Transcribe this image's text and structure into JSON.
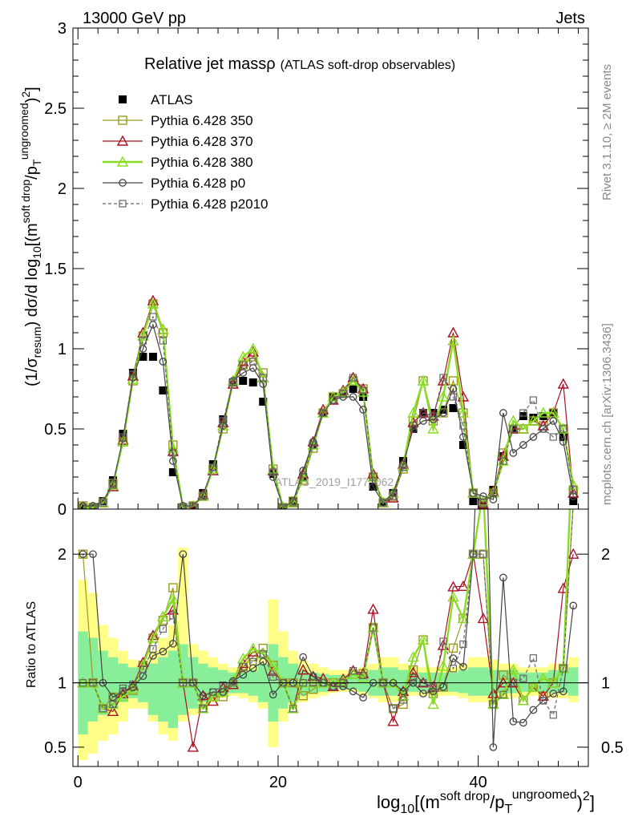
{
  "header": {
    "process": "13000 GeV pp",
    "category": "Jets",
    "side_rivet": "Rivet 3.1.10, ≥ 2M events",
    "side_site": "mcplots.cern.ch [arXiv:1306.3436]"
  },
  "chart_data": [
    {
      "type": "line",
      "title_main": "Relative jet massρ",
      "title_sub": "(ATLAS soft-drop observables)",
      "ylabel": "(1/σresum) dσ/d log10[(m^soft drop/pT^ungroomed)^2]",
      "ylim": [
        0,
        3
      ],
      "xlim": [
        -0.5,
        51
      ],
      "yticks": [
        "0",
        "0.5",
        "1",
        "1.5",
        "2",
        "2.5",
        "3"
      ],
      "watermark": "ATLAS_2019_I1772062",
      "x": [
        0.5,
        1.5,
        2.5,
        3.5,
        4.5,
        5.5,
        6.5,
        7.5,
        8.5,
        9.5,
        10.5,
        11.5,
        12.5,
        13.5,
        14.5,
        15.5,
        16.5,
        17.5,
        18.5,
        19.5,
        20.5,
        21.5,
        22.5,
        23.5,
        24.5,
        25.5,
        26.5,
        27.5,
        28.5,
        29.5,
        30.5,
        31.5,
        32.5,
        33.5,
        34.5,
        35.5,
        36.5,
        37.5,
        38.5,
        39.5,
        40.5,
        41.5,
        42.5,
        43.5,
        44.5,
        45.5,
        46.5,
        47.5,
        48.5,
        49.5
      ],
      "series": [
        {
          "name": "ATLAS",
          "color": "#000000",
          "marker": "filled-square",
          "values": [
            0.01,
            0.01,
            0.05,
            0.18,
            0.47,
            0.85,
            0.95,
            0.95,
            0.74,
            0.23,
            0.01,
            0.02,
            0.1,
            0.28,
            0.56,
            0.79,
            0.8,
            0.79,
            0.67,
            0.22,
            0.01,
            0.05,
            0.2,
            0.4,
            0.6,
            0.7,
            0.72,
            0.75,
            0.7,
            0.14,
            0.04,
            0.1,
            0.3,
            0.5,
            0.6,
            0.6,
            0.62,
            0.63,
            0.4,
            0.05,
            0.02,
            0.12,
            0.33,
            0.5,
            0.58,
            0.57,
            0.58,
            0.6,
            0.45,
            0.05
          ]
        },
        {
          "name": "Pythia 6.428 350",
          "color": "#999922",
          "marker": "open-square",
          "values": [
            0.02,
            0.01,
            0.04,
            0.16,
            0.42,
            0.8,
            1.08,
            1.28,
            1.1,
            0.4,
            0.01,
            0.02,
            0.08,
            0.25,
            0.5,
            0.78,
            0.9,
            0.95,
            0.85,
            0.25,
            0.01,
            0.05,
            0.18,
            0.38,
            0.6,
            0.7,
            0.72,
            0.8,
            0.75,
            0.2,
            0.04,
            0.08,
            0.25,
            0.55,
            0.8,
            0.55,
            0.6,
            0.8,
            0.6,
            0.1,
            0.04,
            0.1,
            0.35,
            0.5,
            0.5,
            0.55,
            0.52,
            0.6,
            0.5,
            0.12
          ]
        },
        {
          "name": "Pythia 6.428 370",
          "color": "#aa1122",
          "marker": "open-triangle",
          "values": [
            0.01,
            0.01,
            0.04,
            0.14,
            0.43,
            0.83,
            1.1,
            1.3,
            1.12,
            0.36,
            0.01,
            0.01,
            0.09,
            0.24,
            0.54,
            0.78,
            0.92,
            0.98,
            0.82,
            0.24,
            0.01,
            0.04,
            0.22,
            0.42,
            0.62,
            0.68,
            0.74,
            0.82,
            0.75,
            0.22,
            0.04,
            0.07,
            0.28,
            0.54,
            0.6,
            0.58,
            0.8,
            1.1,
            0.7,
            0.1,
            0.03,
            0.11,
            0.33,
            0.5,
            0.5,
            0.55,
            0.52,
            0.6,
            0.78,
            0.1
          ]
        },
        {
          "name": "Pythia 6.428 380",
          "color": "#88dd22",
          "marker": "open-triangle",
          "values": [
            0.01,
            0.01,
            0.04,
            0.15,
            0.42,
            0.81,
            1.08,
            1.28,
            1.12,
            0.38,
            0.01,
            0.02,
            0.08,
            0.25,
            0.52,
            0.8,
            0.95,
            1.0,
            0.82,
            0.25,
            0.01,
            0.04,
            0.2,
            0.4,
            0.6,
            0.7,
            0.73,
            0.8,
            0.73,
            0.2,
            0.04,
            0.1,
            0.27,
            0.6,
            0.8,
            0.5,
            0.7,
            1.05,
            0.6,
            0.1,
            0.05,
            0.1,
            0.3,
            0.55,
            0.5,
            0.55,
            0.6,
            0.6,
            0.5,
            0.15
          ]
        },
        {
          "name": "Pythia 6.428 p0",
          "color": "#444444",
          "marker": "open-circle",
          "values": [
            0.02,
            0.02,
            0.05,
            0.16,
            0.44,
            0.82,
            1.0,
            1.15,
            0.92,
            0.3,
            0.02,
            0.02,
            0.09,
            0.26,
            0.52,
            0.8,
            0.85,
            0.88,
            0.78,
            0.2,
            0.01,
            0.05,
            0.24,
            0.42,
            0.6,
            0.68,
            0.7,
            0.7,
            0.62,
            0.14,
            0.04,
            0.1,
            0.28,
            0.5,
            0.55,
            0.56,
            0.6,
            0.75,
            0.45,
            0.1,
            0.08,
            0.06,
            0.6,
            0.35,
            0.4,
            0.45,
            0.5,
            0.55,
            0.42,
            0.08
          ]
        },
        {
          "name": "Pythia 6.428 p2010",
          "color": "#666666",
          "marker": "open-square-dashed",
          "values": [
            0.01,
            0.01,
            0.04,
            0.15,
            0.45,
            0.84,
            1.05,
            1.2,
            1.05,
            0.35,
            0.01,
            0.02,
            0.08,
            0.26,
            0.55,
            0.79,
            0.9,
            0.92,
            0.82,
            0.23,
            0.01,
            0.04,
            0.2,
            0.4,
            0.6,
            0.68,
            0.72,
            0.82,
            0.74,
            0.2,
            0.04,
            0.08,
            0.26,
            0.52,
            0.6,
            0.58,
            0.82,
            0.7,
            0.52,
            0.1,
            0.04,
            0.1,
            0.3,
            0.5,
            0.6,
            0.68,
            0.5,
            0.45,
            0.5,
            0.12
          ]
        }
      ]
    },
    {
      "type": "line",
      "ylabel": "Ratio to ATLAS",
      "ylim": [
        0.35,
        2.35
      ],
      "yticks": [
        "0.5",
        "1",
        "2"
      ],
      "xlim": [
        -0.5,
        51
      ],
      "xticks": [
        "0",
        "20",
        "40"
      ],
      "xlabel": "log10[(m^soft drop/pT^ungroomed)^2]",
      "band_outer_color": "#ffff88",
      "band_inner_color": "#88ee99",
      "x": [
        0.5,
        1.5,
        2.5,
        3.5,
        4.5,
        5.5,
        6.5,
        7.5,
        8.5,
        9.5,
        10.5,
        11.5,
        12.5,
        13.5,
        14.5,
        15.5,
        16.5,
        17.5,
        18.5,
        19.5,
        20.5,
        21.5,
        22.5,
        23.5,
        24.5,
        25.5,
        26.5,
        27.5,
        28.5,
        29.5,
        30.5,
        31.5,
        32.5,
        33.5,
        34.5,
        35.5,
        36.5,
        37.5,
        38.5,
        39.5,
        40.5,
        41.5,
        42.5,
        43.5,
        44.5,
        45.5,
        46.5,
        47.5,
        48.5,
        49.5
      ],
      "band_outer_lo": [
        0.4,
        0.45,
        0.55,
        0.6,
        0.7,
        0.8,
        0.8,
        0.7,
        0.6,
        0.55,
        0.7,
        0.75,
        0.8,
        0.85,
        0.88,
        0.9,
        0.88,
        0.85,
        0.8,
        0.5,
        0.7,
        0.8,
        0.85,
        0.88,
        0.9,
        0.92,
        0.93,
        0.93,
        0.9,
        0.88,
        0.85,
        0.85,
        0.88,
        0.9,
        0.9,
        0.9,
        0.9,
        0.9,
        0.88,
        0.85,
        0.85,
        0.85,
        0.88,
        0.88,
        0.9,
        0.9,
        0.9,
        0.88,
        0.88,
        0.85
      ],
      "band_outer_hi": [
        1.8,
        1.7,
        1.45,
        1.35,
        1.25,
        1.18,
        1.15,
        1.25,
        1.35,
        1.45,
        2.05,
        1.3,
        1.25,
        1.2,
        1.15,
        1.12,
        1.13,
        1.15,
        1.2,
        1.65,
        1.4,
        1.25,
        1.18,
        1.15,
        1.12,
        1.1,
        1.1,
        1.1,
        1.12,
        1.15,
        1.2,
        1.2,
        1.15,
        1.12,
        1.12,
        1.12,
        1.12,
        1.12,
        1.15,
        1.2,
        1.2,
        1.18,
        1.15,
        1.15,
        1.12,
        1.12,
        1.12,
        1.15,
        1.15,
        1.2
      ],
      "band_inner_lo": [
        0.6,
        0.7,
        0.75,
        0.8,
        0.85,
        0.88,
        0.85,
        0.75,
        0.7,
        0.65,
        0.75,
        0.8,
        0.85,
        0.88,
        0.9,
        0.92,
        0.92,
        0.9,
        0.85,
        0.7,
        0.8,
        0.85,
        0.9,
        0.92,
        0.93,
        0.94,
        0.95,
        0.95,
        0.93,
        0.9,
        0.9,
        0.9,
        0.92,
        0.93,
        0.93,
        0.93,
        0.93,
        0.93,
        0.92,
        0.9,
        0.9,
        0.9,
        0.92,
        0.92,
        0.93,
        0.93,
        0.93,
        0.92,
        0.92,
        0.9
      ],
      "band_inner_hi": [
        1.4,
        1.35,
        1.25,
        1.2,
        1.15,
        1.12,
        1.1,
        1.15,
        1.2,
        1.25,
        1.3,
        1.2,
        1.15,
        1.12,
        1.1,
        1.08,
        1.08,
        1.1,
        1.15,
        1.3,
        1.2,
        1.15,
        1.1,
        1.08,
        1.07,
        1.06,
        1.06,
        1.06,
        1.07,
        1.1,
        1.12,
        1.12,
        1.1,
        1.08,
        1.08,
        1.08,
        1.08,
        1.08,
        1.1,
        1.12,
        1.12,
        1.1,
        1.1,
        1.1,
        1.08,
        1.08,
        1.08,
        1.1,
        1.1,
        1.12
      ]
    }
  ]
}
